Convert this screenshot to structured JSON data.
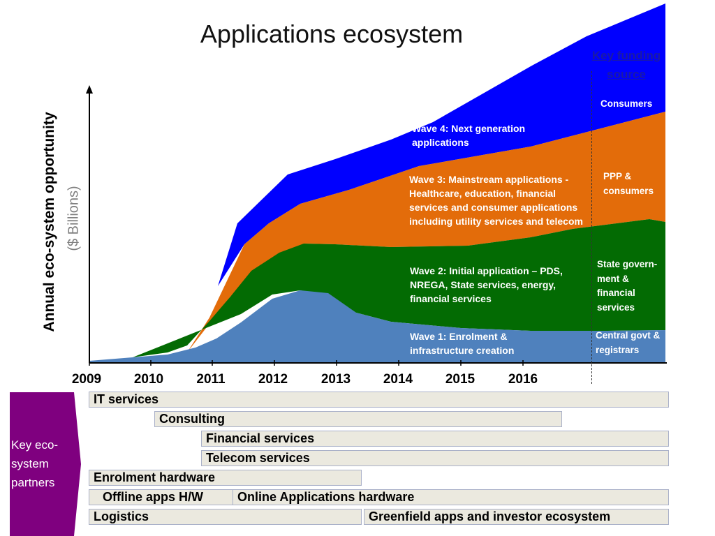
{
  "title": "Applications ecosystem",
  "y_axis": {
    "label": "Annual eco-system opportunity",
    "unit": "($ Billions)"
  },
  "years": [
    "2009",
    "2010",
    "2011",
    "2012",
    "2013",
    "2014",
    "2015",
    "2016"
  ],
  "waves": [
    {
      "name": "Wave 1",
      "text": "Wave 1: Enrolment & infrastructure creation",
      "color": "#4f81bd"
    },
    {
      "name": "Wave 2",
      "text": "Wave 2: Initial application – PDS, NREGA, State services, energy, financial services",
      "color": "#036b03"
    },
    {
      "name": "Wave 3",
      "text": "Wave 3: Mainstream applications - Healthcare, education, financial services and consumer applications including utility services and telecom",
      "color": "#e36c0a"
    },
    {
      "name": "Wave 4",
      "text": "Wave 4: Next generation applications",
      "color": "#0000ff"
    }
  ],
  "key_funding_source": {
    "heading": "Key funding source",
    "items": [
      "Consumers",
      "PPP & consumers",
      "State govern-ment & financial services",
      "Central govt & registrars"
    ]
  },
  "partners": {
    "label": "Key eco-system partners",
    "color": "#7f007f",
    "bars": [
      "IT services",
      "Consulting",
      "Financial services",
      "Telecom services",
      "Enrolment hardware",
      "Offline apps H/W",
      "Online Applications hardware",
      "Logistics",
      "Greenfield apps and investor ecosystem"
    ]
  }
}
